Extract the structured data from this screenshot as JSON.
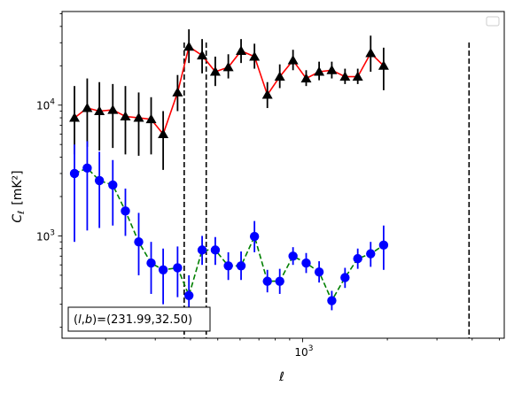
{
  "chart_data": {
    "type": "scatter",
    "xscale": "log",
    "yscale": "log",
    "xlim": [
      140,
      5200
    ],
    "ylim": [
      165,
      52000
    ],
    "xlabel": "ℓ",
    "ylabel_main": "C",
    "ylabel_sub": "ℓ",
    "ylabel_unit": "[mK²]",
    "xticks": [
      {
        "value": 1000,
        "base": "10",
        "exp": "3"
      }
    ],
    "yticks": [
      {
        "value": 1000,
        "base": "10",
        "exp": "3"
      },
      {
        "value": 10000,
        "base": "10",
        "exp": "4"
      }
    ],
    "annotation": "(l,b)=(231.99,32.50)",
    "annotation_parts": {
      "open": "(",
      "l": "l",
      "comma": ",",
      "b": "b",
      "rest": ")=(231.99,32.50)"
    },
    "vlines": [
      380,
      455,
      3900
    ],
    "series": [
      {
        "marker": "triangle",
        "color": "#000000",
        "line_color": "#ff0000",
        "line_style": "solid",
        "points": [
          {
            "x": 155,
            "y": 8000,
            "lo": 4200,
            "hi": 14000
          },
          {
            "x": 172,
            "y": 9500,
            "lo": 4800,
            "hi": 16000
          },
          {
            "x": 190,
            "y": 9000,
            "lo": 4500,
            "hi": 15000
          },
          {
            "x": 212,
            "y": 9200,
            "lo": 4700,
            "hi": 14500
          },
          {
            "x": 235,
            "y": 8200,
            "lo": 4200,
            "hi": 14000
          },
          {
            "x": 262,
            "y": 8000,
            "lo": 4100,
            "hi": 12500
          },
          {
            "x": 290,
            "y": 7800,
            "lo": 4200,
            "hi": 11500
          },
          {
            "x": 320,
            "y": 6000,
            "lo": 3200,
            "hi": 9000
          },
          {
            "x": 360,
            "y": 12500,
            "lo": 9000,
            "hi": 17000
          },
          {
            "x": 395,
            "y": 28000,
            "lo": 21000,
            "hi": 38000
          },
          {
            "x": 440,
            "y": 24000,
            "lo": 17500,
            "hi": 32000
          },
          {
            "x": 490,
            "y": 18000,
            "lo": 14000,
            "hi": 23500
          },
          {
            "x": 545,
            "y": 19500,
            "lo": 16000,
            "hi": 24500
          },
          {
            "x": 605,
            "y": 26000,
            "lo": 21000,
            "hi": 32000
          },
          {
            "x": 675,
            "y": 23500,
            "lo": 19000,
            "hi": 29500
          },
          {
            "x": 750,
            "y": 12000,
            "lo": 9500,
            "hi": 15000
          },
          {
            "x": 830,
            "y": 16500,
            "lo": 13500,
            "hi": 20500
          },
          {
            "x": 925,
            "y": 22000,
            "lo": 18500,
            "hi": 26500
          },
          {
            "x": 1030,
            "y": 16000,
            "lo": 14000,
            "hi": 18500
          },
          {
            "x": 1145,
            "y": 18000,
            "lo": 15500,
            "hi": 21500
          },
          {
            "x": 1270,
            "y": 18500,
            "lo": 16000,
            "hi": 21500
          },
          {
            "x": 1415,
            "y": 16500,
            "lo": 14500,
            "hi": 19000
          },
          {
            "x": 1570,
            "y": 16500,
            "lo": 14500,
            "hi": 19000
          },
          {
            "x": 1745,
            "y": 25000,
            "lo": 18000,
            "hi": 34000
          },
          {
            "x": 1940,
            "y": 20000,
            "lo": 13000,
            "hi": 27500
          }
        ]
      },
      {
        "marker": "circle",
        "color": "#0000ff",
        "line_color": "#008000",
        "line_style": "dashed",
        "points": [
          {
            "x": 155,
            "y": 3000,
            "lo": 900,
            "hi": 5000
          },
          {
            "x": 172,
            "y": 3300,
            "lo": 1100,
            "hi": 5300
          },
          {
            "x": 190,
            "y": 2650,
            "lo": 1150,
            "hi": 4400
          },
          {
            "x": 212,
            "y": 2450,
            "lo": 1200,
            "hi": 3800
          },
          {
            "x": 235,
            "y": 1550,
            "lo": 1000,
            "hi": 2300
          },
          {
            "x": 262,
            "y": 900,
            "lo": 500,
            "hi": 1500
          },
          {
            "x": 290,
            "y": 620,
            "lo": 360,
            "hi": 900
          },
          {
            "x": 320,
            "y": 550,
            "lo": 300,
            "hi": 800
          },
          {
            "x": 360,
            "y": 570,
            "lo": 340,
            "hi": 830
          },
          {
            "x": 395,
            "y": 350,
            "lo": 210,
            "hi": 500
          },
          {
            "x": 440,
            "y": 780,
            "lo": 600,
            "hi": 1000
          },
          {
            "x": 490,
            "y": 780,
            "lo": 600,
            "hi": 980
          },
          {
            "x": 545,
            "y": 590,
            "lo": 460,
            "hi": 750
          },
          {
            "x": 605,
            "y": 590,
            "lo": 460,
            "hi": 760
          },
          {
            "x": 675,
            "y": 990,
            "lo": 750,
            "hi": 1300
          },
          {
            "x": 750,
            "y": 450,
            "lo": 370,
            "hi": 550
          },
          {
            "x": 830,
            "y": 450,
            "lo": 360,
            "hi": 560
          },
          {
            "x": 925,
            "y": 700,
            "lo": 600,
            "hi": 820
          },
          {
            "x": 1030,
            "y": 620,
            "lo": 520,
            "hi": 740
          },
          {
            "x": 1145,
            "y": 530,
            "lo": 440,
            "hi": 640
          },
          {
            "x": 1270,
            "y": 320,
            "lo": 270,
            "hi": 380
          },
          {
            "x": 1415,
            "y": 480,
            "lo": 400,
            "hi": 570
          },
          {
            "x": 1570,
            "y": 670,
            "lo": 560,
            "hi": 800
          },
          {
            "x": 1745,
            "y": 730,
            "lo": 580,
            "hi": 900
          },
          {
            "x": 1940,
            "y": 850,
            "lo": 550,
            "hi": 1200
          }
        ]
      }
    ]
  }
}
